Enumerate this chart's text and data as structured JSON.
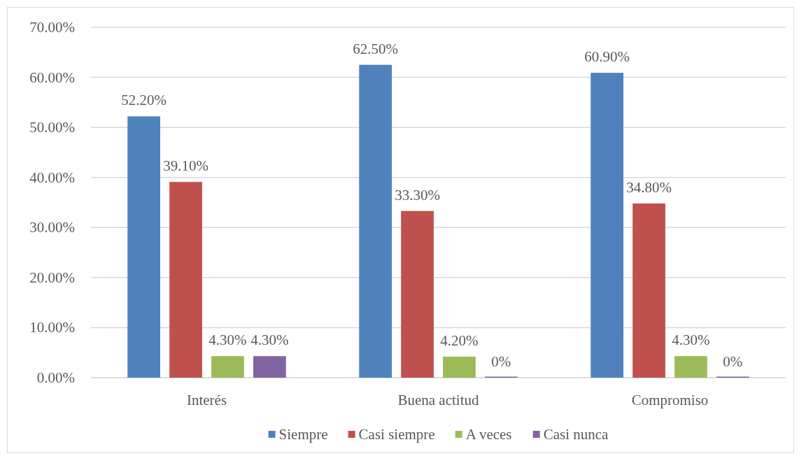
{
  "chart_data": {
    "type": "bar",
    "categories": [
      "Interés",
      "Buena actitud",
      "Compromiso"
    ],
    "series": [
      {
        "name": "Siempre",
        "color": "#4f81bd",
        "values": [
          52.2,
          62.5,
          60.9
        ],
        "value_labels": [
          "52.20%",
          "62.50%",
          "60.90%"
        ]
      },
      {
        "name": "Casi siempre",
        "color": "#c0504d",
        "values": [
          39.1,
          33.3,
          34.8
        ],
        "value_labels": [
          "39.10%",
          "33.30%",
          "34.80%"
        ]
      },
      {
        "name": "A veces",
        "color": "#9bbb59",
        "values": [
          4.3,
          4.2,
          4.3
        ],
        "value_labels": [
          "4.30%",
          "4.20%",
          "4.30%"
        ]
      },
      {
        "name": "Casi nunca",
        "color": "#8064a2",
        "values": [
          4.3,
          0,
          0
        ],
        "value_labels": [
          "4.30%",
          "0%",
          "0%"
        ]
      }
    ],
    "ylim": [
      0,
      70
    ],
    "yticks": [
      {
        "value": 0,
        "label": "0.00%"
      },
      {
        "value": 10,
        "label": "10.00%"
      },
      {
        "value": 20,
        "label": "20.00%"
      },
      {
        "value": 30,
        "label": "30.00%"
      },
      {
        "value": 40,
        "label": "40.00%"
      },
      {
        "value": 50,
        "label": "50.00%"
      },
      {
        "value": 60,
        "label": "60.00%"
      },
      {
        "value": 70,
        "label": "70.00%"
      }
    ],
    "grid": "y",
    "legend": "bottom"
  }
}
